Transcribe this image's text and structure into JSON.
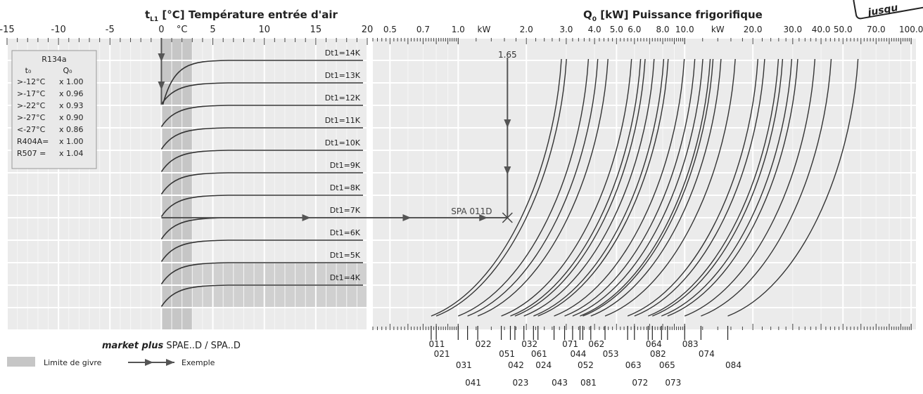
{
  "left_title": "t",
  "left_title_sub": "L1",
  "left_title_rest": " [°C] Température entrée d'air",
  "right_title": "Q",
  "right_title_sub": "0",
  "right_title_rest": " [kW] Puissance frigorifique",
  "corner_badge": "jusqu",
  "unit_c": "°C",
  "unit_kw": "kW",
  "product_label_italic": "market plus",
  "product_label_rest": " SPAE..D / SPA..D",
  "legend_frost": "Limite de givre",
  "legend_example": "Exemple",
  "example_value": "1.65",
  "example_model": "SPA 011D",
  "colors": {
    "panel": "#ebebeb",
    "grid_major": "#ffffff",
    "frost_band": "#c6c6c6",
    "curve": "#333333",
    "arrow": "#555555"
  },
  "correction_table": {
    "refrigerant": "R134a",
    "col1": "t₀",
    "col2": "Q₀",
    "rows": [
      {
        "t": ">-12°C",
        "q": "x 1.00"
      },
      {
        "t": ">-17°C",
        "q": "x 0.96"
      },
      {
        "t": ">-22°C",
        "q": "x 0.93"
      },
      {
        "t": ">-27°C",
        "q": "x 0.90"
      },
      {
        "t": "<-27°C",
        "q": "x 0.86"
      },
      {
        "t": "R404A=",
        "q": "x 1.00"
      },
      {
        "t": "R507  =",
        "q": "x 1.04"
      }
    ]
  },
  "chart_data": {
    "type": "line",
    "left_panel": {
      "xlabel": "t [°C] Température entrée d'air",
      "xlim": [
        -15,
        20
      ],
      "x_ticks": [
        "-15",
        "-10",
        "-5",
        "0",
        "5",
        "10",
        "15",
        "20"
      ],
      "frost_limit_band": [
        0,
        3
      ],
      "series": [
        {
          "name": "Dt1=14K",
          "end_row": 1
        },
        {
          "name": "Dt1=13K",
          "end_row": 2
        },
        {
          "name": "Dt1=12K",
          "end_row": 3
        },
        {
          "name": "Dt1=11K",
          "end_row": 4
        },
        {
          "name": "Dt1=10K",
          "end_row": 5
        },
        {
          "name": "Dt1=9K",
          "end_row": 6
        },
        {
          "name": "Dt1=8K",
          "end_row": 7
        },
        {
          "name": "Dt1=7K",
          "end_row": 8
        },
        {
          "name": "Dt1=6K",
          "end_row": 9
        },
        {
          "name": "Dt1=5K",
          "end_row": 10
        },
        {
          "name": "Dt1=4K",
          "end_row": 11
        }
      ]
    },
    "right_panel": {
      "xlabel": "Q [kW] Puissance frigorifique",
      "x_scale": "log",
      "xlim": [
        0.42,
        105
      ],
      "x_ticks": [
        "0.5",
        "0.7",
        "1.0",
        "2.0",
        "3.0",
        "4.0",
        "5.0",
        "6.0",
        "8.0",
        "10.0",
        "20.0",
        "30.0",
        "40.0",
        "50.0",
        "70.0",
        "100.0"
      ],
      "x_tick_values": [
        0.5,
        0.7,
        1.0,
        2.0,
        3.0,
        4.0,
        5.0,
        6.0,
        8.0,
        10.0,
        20.0,
        30.0,
        40.0,
        50.0,
        70.0,
        100.0
      ],
      "models": [
        "011",
        "021",
        "031",
        "041",
        "022",
        "051",
        "042",
        "023",
        "032",
        "061",
        "024",
        "043",
        "071",
        "044",
        "052",
        "081",
        "062",
        "053",
        "063",
        "072",
        "064",
        "082",
        "065",
        "073",
        "083",
        "074",
        "084"
      ],
      "model_start_kw": [
        0.76,
        0.8,
        1.0,
        1.1,
        1.22,
        1.55,
        1.7,
        1.78,
        1.95,
        2.15,
        2.25,
        2.65,
        2.95,
        3.2,
        3.45,
        3.55,
        3.85,
        4.45,
        5.6,
        6.0,
        6.9,
        7.2,
        7.9,
        8.4,
        10.0,
        11.8,
        15.5
      ]
    },
    "example": {
      "x_value_kw": 1.65,
      "model": "SPA 011D",
      "series": "Dt1=7K",
      "air_temperature_c": 0
    }
  }
}
